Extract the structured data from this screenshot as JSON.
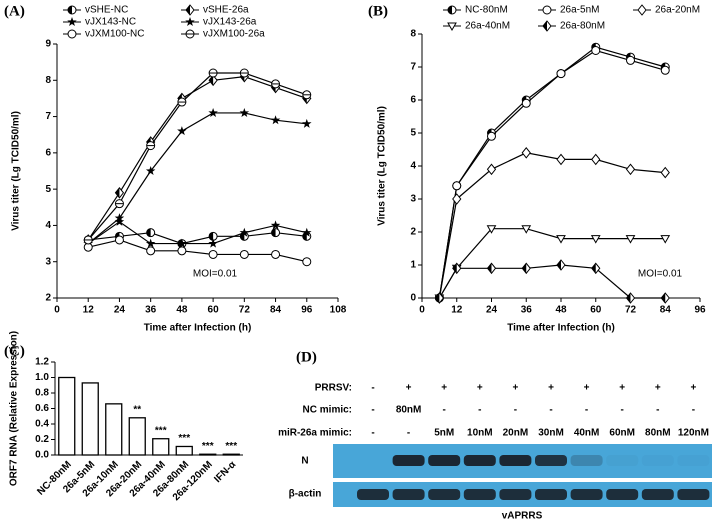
{
  "chart_data": [
    {
      "type": "line",
      "panel_label": "(A)",
      "xlabel": "Time after Infection (h)",
      "ylabel": "Virus titer (Lg TCID50/ml)",
      "annotation": "MOI=0.01",
      "x": [
        12,
        24,
        36,
        48,
        60,
        72,
        84,
        96
      ],
      "xlim": [
        0,
        108
      ],
      "xticks": [
        0,
        12,
        24,
        36,
        48,
        60,
        72,
        84,
        96,
        108
      ],
      "ylim": [
        2,
        9
      ],
      "yticks": [
        2,
        3,
        4,
        5,
        6,
        7,
        8,
        9
      ],
      "series": [
        {
          "name": "vSHE-NC",
          "color": "#000000",
          "marker": "half-circle",
          "values": [
            3.6,
            3.7,
            3.8,
            3.5,
            3.7,
            3.7,
            3.8,
            3.7
          ]
        },
        {
          "name": "vSHE-26a",
          "color": "#000000",
          "marker": "half-diamond",
          "values": [
            3.6,
            4.9,
            6.3,
            7.5,
            8.0,
            8.1,
            7.8,
            7.5
          ]
        },
        {
          "name": "vJX143-NC",
          "color": "#000000",
          "marker": "star",
          "values": [
            3.5,
            4.1,
            3.5,
            3.5,
            3.5,
            3.8,
            4.0,
            3.8
          ]
        },
        {
          "name": "vJX143-26a",
          "color": "#000000",
          "marker": "star",
          "values": [
            3.5,
            4.2,
            5.5,
            6.6,
            7.1,
            7.1,
            6.9,
            6.8
          ]
        },
        {
          "name": "vJXM100-NC",
          "color": "#000000",
          "marker": "circle",
          "values": [
            3.4,
            3.6,
            3.3,
            3.3,
            3.2,
            3.2,
            3.2,
            3.0
          ]
        },
        {
          "name": "vJXM100-26a",
          "color": "#000000",
          "marker": "circle-dot",
          "values": [
            3.6,
            4.6,
            6.2,
            7.4,
            8.2,
            8.2,
            7.9,
            7.6
          ]
        }
      ]
    },
    {
      "type": "line",
      "panel_label": "(B)",
      "xlabel": "Time after Infection (h)",
      "ylabel": "Virus titer (Lg TCID50/ml)",
      "annotation": "MOI=0.01",
      "x": [
        6,
        12,
        24,
        36,
        48,
        60,
        72,
        84
      ],
      "xlim": [
        0,
        96
      ],
      "xticks": [
        0,
        12,
        24,
        36,
        48,
        60,
        72,
        84,
        96
      ],
      "ylim": [
        0,
        8
      ],
      "yticks": [
        0,
        1,
        2,
        3,
        4,
        5,
        6,
        7,
        8
      ],
      "series": [
        {
          "name": "NC-80nM",
          "color": "#000000",
          "marker": "half-circle",
          "values": [
            0,
            3.4,
            5.0,
            6.0,
            6.8,
            7.6,
            7.3,
            7.0
          ]
        },
        {
          "name": "26a-5nM",
          "color": "#000000",
          "marker": "circle",
          "values": [
            0,
            3.4,
            4.9,
            5.9,
            6.8,
            7.5,
            7.2,
            6.9
          ]
        },
        {
          "name": "26a-20nM",
          "color": "#000000",
          "marker": "diamond",
          "values": [
            0,
            3.0,
            3.9,
            4.4,
            4.2,
            4.2,
            3.9,
            3.8
          ]
        },
        {
          "name": "26a-40nM",
          "color": "#000000",
          "marker": "triangle-down",
          "values": [
            0,
            0.9,
            2.1,
            2.1,
            1.8,
            1.8,
            1.8,
            1.8
          ]
        },
        {
          "name": "26a-80nM",
          "color": "#000000",
          "marker": "half-diamond",
          "values": [
            0,
            0.9,
            0.9,
            0.9,
            1.0,
            0.9,
            0,
            0
          ]
        }
      ]
    },
    {
      "type": "bar",
      "panel_label": "(C)",
      "ylabel": "ORF7 RNA (Relative Expression)",
      "categories": [
        "NC-80nM",
        "26a-5nM",
        "26a-10nM",
        "26a-20nM",
        "26a-40nM",
        "26a-80nM",
        "26a-120nM",
        "IFN-α"
      ],
      "values": [
        1.0,
        0.93,
        0.66,
        0.48,
        0.21,
        0.11,
        0.01,
        0.01
      ],
      "annotations": [
        null,
        null,
        null,
        "**",
        "***",
        "***",
        "***",
        "***"
      ],
      "color": "#ffffff",
      "ylim": [
        0,
        1.2
      ],
      "yticks": [
        {
          "value": 0,
          "label": "0.0"
        },
        {
          "value": 0.2,
          "label": "0.2"
        },
        {
          "value": 0.4,
          "label": "0.4"
        },
        {
          "value": 0.6,
          "label": "0.6"
        },
        {
          "value": 0.8,
          "label": "0.8"
        },
        {
          "value": 1,
          "label": "1.0"
        },
        {
          "value": 1.2,
          "label": "1.2"
        }
      ]
    }
  ],
  "blot": {
    "panel_label": "(D)",
    "rows": [
      {
        "label": "PRRSV:",
        "lanes": [
          "-",
          "+",
          "+",
          "+",
          "+",
          "+",
          "+",
          "+",
          "+",
          "+"
        ]
      },
      {
        "label": "NC mimic:",
        "lanes": [
          "-",
          "80nM",
          "-",
          "-",
          "-",
          "-",
          "-",
          "-",
          "-",
          "-"
        ]
      },
      {
        "label": "miR-26a mimic:",
        "lanes": [
          "-",
          "-",
          "5nM",
          "10nM",
          "20nM",
          "30nM",
          "40nM",
          "60nM",
          "80nM",
          "120nM"
        ]
      }
    ],
    "bands": [
      "N",
      "β-actin"
    ],
    "footer": "vAPRRS"
  }
}
